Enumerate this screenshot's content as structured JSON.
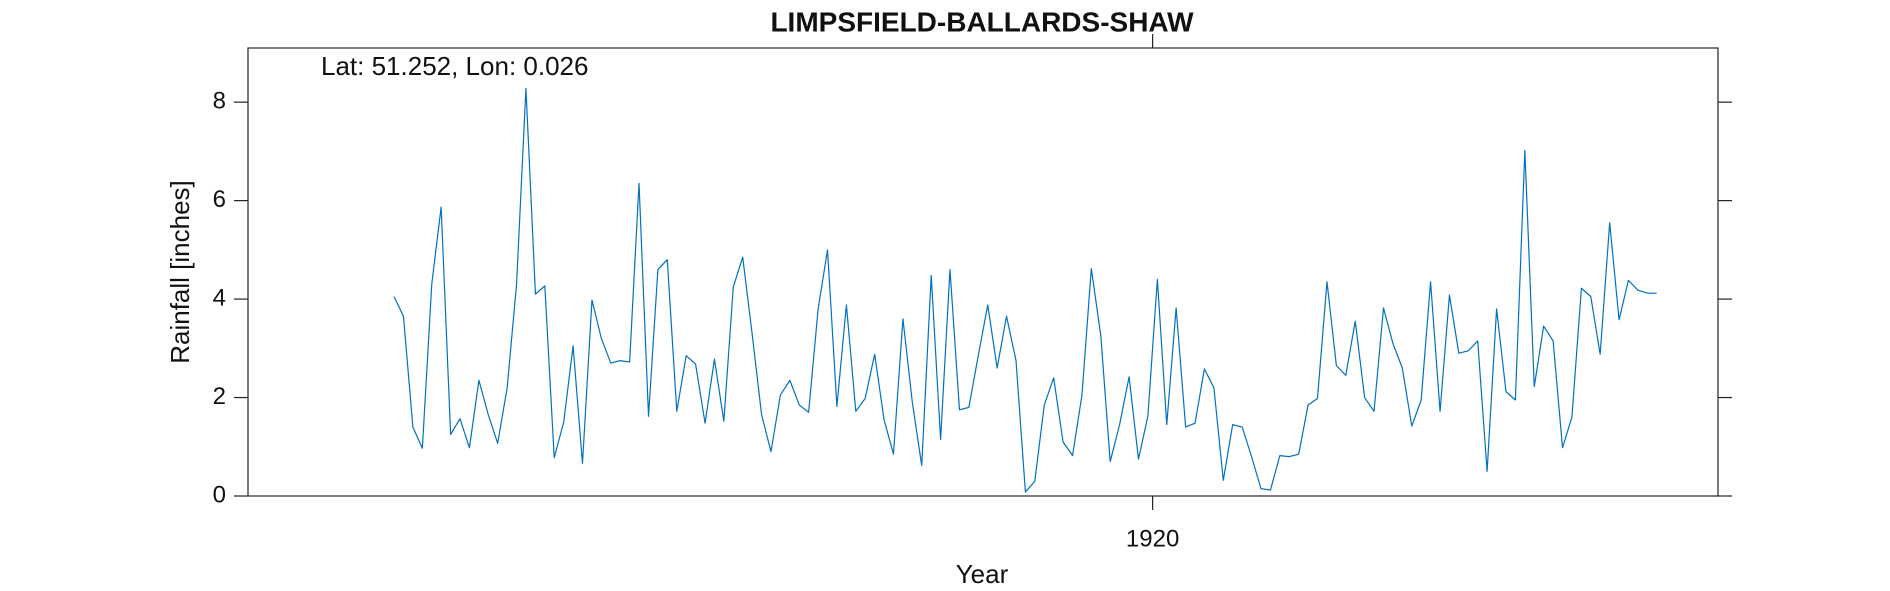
{
  "chart_data": {
    "type": "line",
    "title": "LIMPSFIELD-BALLARDS-SHAW",
    "annotation": "Lat: 51.252, Lon: 0.026",
    "x_label": "Year",
    "y_label": "Rainfall [inches]",
    "xlim": [
      1912,
      1925
    ],
    "xticks": [
      1920
    ],
    "ylim": [
      0,
      9.1
    ],
    "yticks": [
      0,
      2,
      4,
      6,
      8
    ],
    "grid": false,
    "series": [
      {
        "name": "Rainfall",
        "color": "#0072bd",
        "x": [
          1913.292,
          1913.375,
          1913.458,
          1913.542,
          1913.625,
          1913.708,
          1913.792,
          1913.875,
          1913.958,
          1914.042,
          1914.125,
          1914.208,
          1914.292,
          1914.375,
          1914.458,
          1914.542,
          1914.625,
          1914.708,
          1914.792,
          1914.875,
          1914.958,
          1915.042,
          1915.125,
          1915.208,
          1915.292,
          1915.375,
          1915.458,
          1915.542,
          1915.625,
          1915.708,
          1915.792,
          1915.875,
          1915.958,
          1916.042,
          1916.125,
          1916.208,
          1916.292,
          1916.375,
          1916.458,
          1916.542,
          1916.625,
          1916.708,
          1916.792,
          1916.875,
          1916.958,
          1917.042,
          1917.125,
          1917.208,
          1917.292,
          1917.375,
          1917.458,
          1917.542,
          1917.625,
          1917.708,
          1917.792,
          1917.875,
          1917.958,
          1918.042,
          1918.125,
          1918.208,
          1918.292,
          1918.375,
          1918.458,
          1918.542,
          1918.625,
          1918.708,
          1918.792,
          1918.875,
          1918.958,
          1919.042,
          1919.125,
          1919.208,
          1919.292,
          1919.375,
          1919.458,
          1919.542,
          1919.625,
          1919.708,
          1919.792,
          1919.875,
          1919.958,
          1920.042,
          1920.125,
          1920.208,
          1920.292,
          1920.375,
          1920.458,
          1920.542,
          1920.625,
          1920.708,
          1920.792,
          1920.875,
          1920.958,
          1921.042,
          1921.125,
          1921.208,
          1921.292,
          1921.375,
          1921.458,
          1921.542,
          1921.625,
          1921.708,
          1921.792,
          1921.875,
          1921.958,
          1922.042,
          1922.125,
          1922.208,
          1922.292,
          1922.375,
          1922.458,
          1922.542,
          1922.625,
          1922.708,
          1922.792,
          1922.875,
          1922.958,
          1923.042,
          1923.125,
          1923.208,
          1923.292,
          1923.375,
          1923.458,
          1923.542,
          1923.625,
          1923.708,
          1923.792,
          1923.875,
          1923.958,
          1924.042,
          1924.125,
          1924.208,
          1924.292,
          1924.375,
          1924.458
        ],
        "values": [
          4.05,
          3.65,
          1.4,
          0.97,
          4.3,
          5.87,
          1.25,
          1.57,
          0.98,
          2.35,
          1.65,
          1.07,
          2.2,
          4.3,
          8.28,
          4.1,
          4.27,
          0.78,
          1.5,
          3.05,
          0.66,
          3.98,
          3.2,
          2.7,
          2.75,
          2.72,
          6.35,
          1.62,
          4.6,
          4.8,
          1.72,
          2.85,
          2.68,
          1.48,
          2.78,
          1.52,
          4.25,
          4.85,
          3.3,
          1.65,
          0.9,
          2.05,
          2.35,
          1.85,
          1.7,
          3.8,
          5.0,
          1.82,
          3.88,
          1.72,
          1.98,
          2.88,
          1.55,
          0.85,
          3.6,
          1.9,
          0.62,
          4.48,
          1.15,
          4.6,
          1.75,
          1.8,
          2.85,
          3.88,
          2.6,
          3.65,
          2.75,
          0.08,
          0.3,
          1.85,
          2.4,
          1.1,
          0.82,
          2.05,
          4.62,
          3.25,
          0.7,
          1.45,
          2.42,
          0.75,
          1.62,
          4.4,
          1.45,
          3.82,
          1.4,
          1.48,
          2.58,
          2.2,
          0.32,
          1.45,
          1.4,
          0.8,
          0.15,
          0.12,
          0.82,
          0.8,
          0.85,
          1.85,
          1.98,
          4.35,
          2.65,
          2.45,
          3.55,
          2.0,
          1.72,
          3.82,
          3.1,
          2.6,
          1.42,
          1.95,
          4.35,
          1.72,
          4.08,
          2.9,
          2.95,
          3.15,
          0.5,
          3.8,
          2.12,
          1.95,
          7.02,
          2.22,
          3.45,
          3.15,
          0.98,
          1.6,
          4.22,
          4.05,
          2.88,
          5.55,
          3.58,
          4.38,
          4.18,
          4.12,
          4.12
        ]
      }
    ]
  }
}
